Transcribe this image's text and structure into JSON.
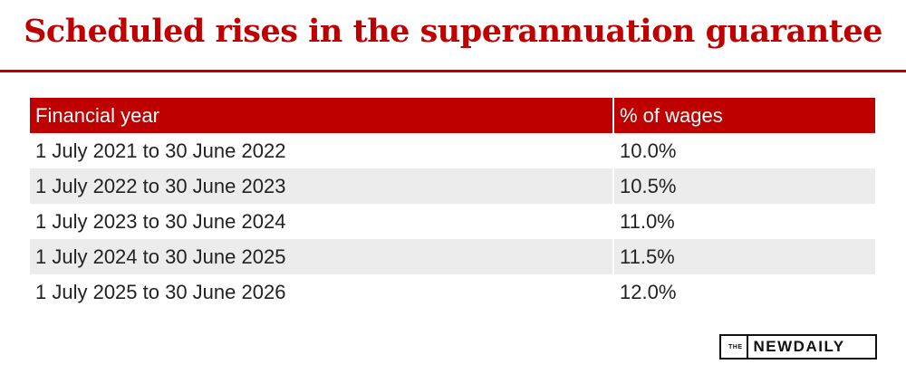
{
  "chart_data": {
    "type": "table",
    "title": "Scheduled rises in the superannuation guarantee",
    "columns": [
      "Financial year",
      "% of wages"
    ],
    "rows": [
      [
        "1 July 2021 to 30 June 2022",
        "10.0%"
      ],
      [
        "1 July 2022 to 30 June 2023",
        "10.5%"
      ],
      [
        "1 July 2023 to 30 June 2024",
        "11.0%"
      ],
      [
        "1 July 2024 to 30 June 2025",
        "11.5%"
      ],
      [
        "1 July 2025 to 30 June 2026",
        "12.0%"
      ]
    ]
  },
  "logo": {
    "the": "THE",
    "name": "NEWDAILY"
  },
  "colors": {
    "accent": "#c00000",
    "header_bg": "#bf0000",
    "stripe": "#ececec"
  }
}
